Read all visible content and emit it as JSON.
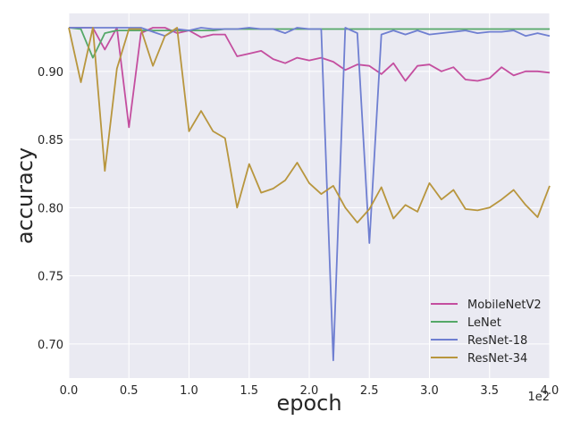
{
  "chart_data": {
    "type": "line",
    "xlabel": "epoch",
    "ylabel": "accuracy",
    "x_offset_text": "1e2",
    "xlim": [
      0,
      4
    ],
    "ylim": [
      0.675,
      0.9425
    ],
    "xticks": [
      0,
      0.5,
      1,
      1.5,
      2,
      2.5,
      3,
      3.5,
      4
    ],
    "xtick_labels": [
      "0.0",
      "0.5",
      "1.0",
      "1.5",
      "2.0",
      "2.5",
      "3.0",
      "3.5",
      "4.0"
    ],
    "yticks": [
      0.7,
      0.75,
      0.8,
      0.85,
      0.9
    ],
    "ytick_labels": [
      "0.70",
      "0.75",
      "0.80",
      "0.85",
      "0.90"
    ],
    "grid": true,
    "legend_position": "lower-right",
    "x": [
      0,
      0.1,
      0.2,
      0.3,
      0.4,
      0.5,
      0.6,
      0.7,
      0.8,
      0.9,
      1.0,
      1.1,
      1.2,
      1.3,
      1.4,
      1.5,
      1.6,
      1.7,
      1.8,
      1.9,
      2.0,
      2.1,
      2.2,
      2.3,
      2.4,
      2.5,
      2.6,
      2.7,
      2.8,
      2.9,
      3.0,
      3.1,
      3.2,
      3.3,
      3.4,
      3.5,
      3.6,
      3.7,
      3.8,
      3.9,
      4.0
    ],
    "series": [
      {
        "name": "MobileNetV2",
        "color": "#c44e9f",
        "values": [
          0.932,
          0.932,
          0.932,
          0.916,
          0.932,
          0.859,
          0.928,
          0.932,
          0.932,
          0.928,
          0.93,
          0.925,
          0.927,
          0.927,
          0.911,
          0.913,
          0.915,
          0.909,
          0.906,
          0.91,
          0.908,
          0.91,
          0.907,
          0.901,
          0.905,
          0.904,
          0.898,
          0.906,
          0.893,
          0.904,
          0.905,
          0.9,
          0.903,
          0.894,
          0.893,
          0.895,
          0.903,
          0.897,
          0.9,
          0.9,
          0.899
        ]
      },
      {
        "name": "LeNet",
        "color": "#55a868",
        "values": [
          0.932,
          0.931,
          0.91,
          0.928,
          0.93,
          0.93,
          0.93,
          0.93,
          0.93,
          0.93,
          0.93,
          0.93,
          0.93,
          0.931,
          0.931,
          0.931,
          0.931,
          0.931,
          0.931,
          0.931,
          0.931,
          0.931,
          0.931,
          0.931,
          0.931,
          0.931,
          0.931,
          0.931,
          0.931,
          0.931,
          0.931,
          0.931,
          0.931,
          0.931,
          0.931,
          0.931,
          0.931,
          0.931,
          0.931,
          0.931,
          0.931
        ]
      },
      {
        "name": "ResNet-18",
        "color": "#6f7fd1",
        "values": [
          0.932,
          0.932,
          0.932,
          0.932,
          0.932,
          0.932,
          0.932,
          0.929,
          0.926,
          0.931,
          0.93,
          0.932,
          0.931,
          0.931,
          0.931,
          0.932,
          0.931,
          0.931,
          0.928,
          0.932,
          0.931,
          0.931,
          0.688,
          0.932,
          0.928,
          0.774,
          0.927,
          0.93,
          0.927,
          0.93,
          0.927,
          0.928,
          0.929,
          0.93,
          0.928,
          0.929,
          0.929,
          0.93,
          0.926,
          0.928,
          0.926
        ]
      },
      {
        "name": "ResNet-34",
        "color": "#b8963e",
        "values": [
          0.932,
          0.892,
          0.932,
          0.827,
          0.902,
          0.931,
          0.931,
          0.904,
          0.926,
          0.932,
          0.856,
          0.871,
          0.856,
          0.851,
          0.8,
          0.832,
          0.811,
          0.814,
          0.82,
          0.833,
          0.818,
          0.81,
          0.816,
          0.8,
          0.789,
          0.799,
          0.815,
          0.792,
          0.802,
          0.797,
          0.818,
          0.806,
          0.813,
          0.799,
          0.798,
          0.8,
          0.806,
          0.813,
          0.802,
          0.793,
          0.816
        ]
      }
    ]
  }
}
